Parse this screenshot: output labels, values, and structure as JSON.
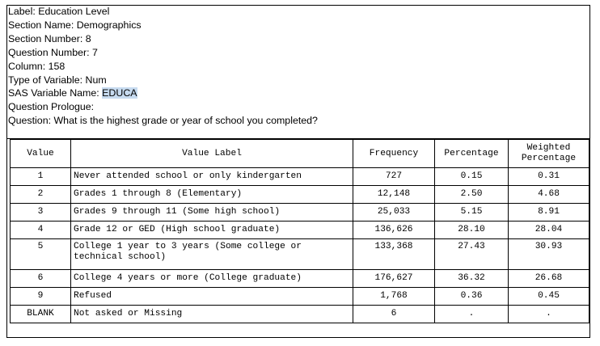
{
  "meta": {
    "label": "Label: Education Level",
    "section_name": "Section Name: Demographics",
    "section_number": "Section Number: 8",
    "question_number": "Question Number: 7",
    "column": "Column: 158",
    "type_of_variable": "Type of Variable: Num",
    "sas_prefix": "SAS Variable Name: ",
    "sas_name": "EDUCA",
    "question_prologue": "Question Prologue:",
    "question": "Question:  What is the highest grade or year of school you completed?"
  },
  "table": {
    "headers": {
      "value": "Value",
      "value_label": "Value Label",
      "frequency": "Frequency",
      "percentage": "Percentage",
      "weighted_line1": "Weighted",
      "weighted_line2": "Percentage"
    },
    "rows": [
      {
        "value": "1",
        "label": "Never attended school or only kindergarten",
        "frequency": "727",
        "percentage": "0.15",
        "weighted": "0.31"
      },
      {
        "value": "2",
        "label": "Grades 1 through 8 (Elementary)",
        "frequency": "12,148",
        "percentage": "2.50",
        "weighted": "4.68"
      },
      {
        "value": "3",
        "label": "Grades 9 through 11 (Some high school)",
        "frequency": "25,033",
        "percentage": "5.15",
        "weighted": "8.91"
      },
      {
        "value": "4",
        "label": "Grade 12 or GED (High school graduate)",
        "frequency": "136,626",
        "percentage": "28.10",
        "weighted": "28.04"
      },
      {
        "value": "5",
        "label": "College 1 year to 3 years (Some college or technical school)",
        "frequency": "133,368",
        "percentage": "27.43",
        "weighted": "30.93"
      },
      {
        "value": "6",
        "label": "College 4 years or more (College graduate)",
        "frequency": "176,627",
        "percentage": "36.32",
        "weighted": "26.68"
      },
      {
        "value": "9",
        "label": "Refused",
        "frequency": "1,768",
        "percentage": "0.36",
        "weighted": "0.45"
      },
      {
        "value": "BLANK",
        "label": "Not asked or Missing",
        "frequency": "6",
        "percentage": ".",
        "weighted": "."
      }
    ]
  }
}
